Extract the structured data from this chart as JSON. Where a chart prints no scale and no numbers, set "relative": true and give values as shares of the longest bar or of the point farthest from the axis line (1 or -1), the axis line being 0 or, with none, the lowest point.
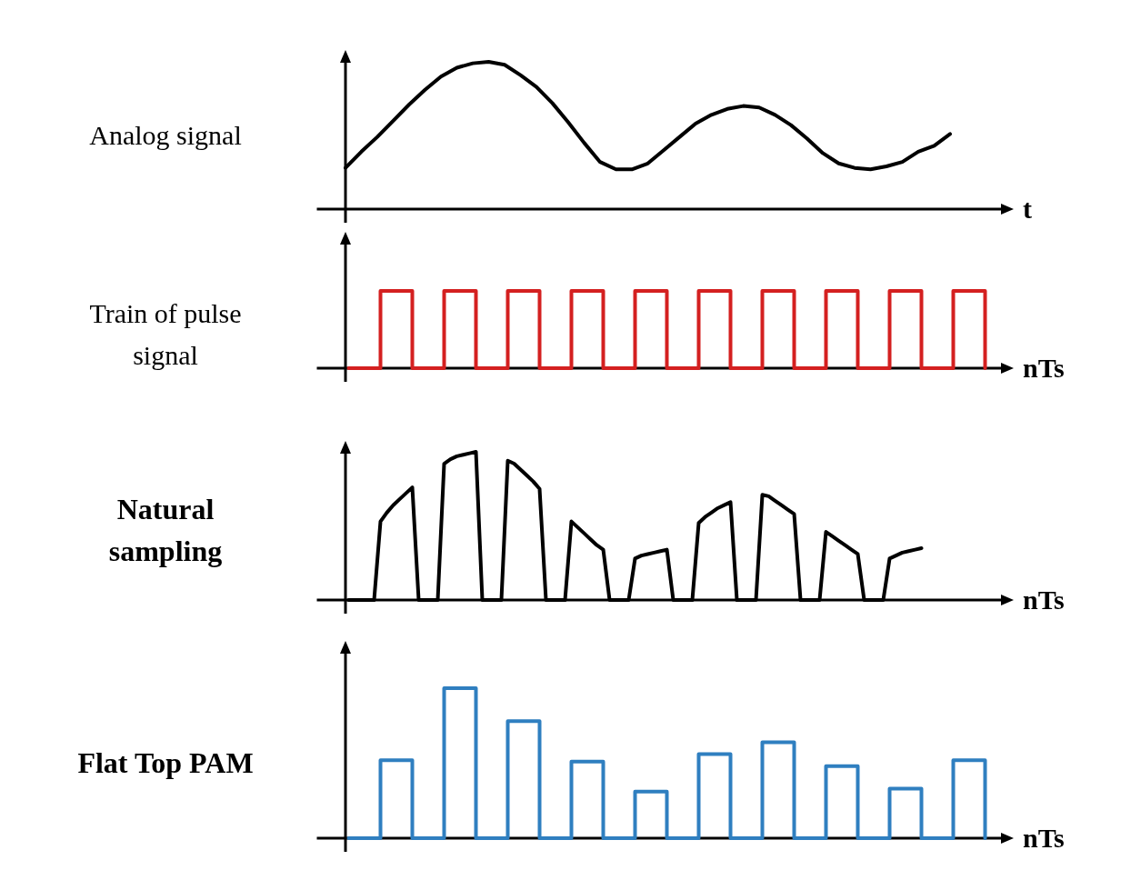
{
  "chart_data": [
    {
      "type": "line",
      "ylabel": "Analog signal",
      "xlabel": "t",
      "relative": true,
      "color": "#000000",
      "categories": [
        null,
        null,
        null,
        null,
        null,
        null,
        null,
        null,
        null,
        null,
        null,
        null,
        null,
        null,
        null,
        null,
        null,
        null,
        null,
        null,
        null,
        null,
        null,
        null,
        null,
        null,
        null,
        null,
        null,
        null,
        null,
        null,
        null,
        null,
        null,
        null,
        null,
        null,
        null
      ],
      "values": [
        0.28,
        0.39,
        0.49,
        0.6,
        0.71,
        0.81,
        0.9,
        0.96,
        0.99,
        1.0,
        0.98,
        0.91,
        0.83,
        0.72,
        0.59,
        0.45,
        0.32,
        0.27,
        0.27,
        0.31,
        0.4,
        0.49,
        0.58,
        0.64,
        0.68,
        0.7,
        0.69,
        0.64,
        0.57,
        0.48,
        0.38,
        0.31,
        0.28,
        0.27,
        0.29,
        0.32,
        0.39,
        0.43,
        0.51
      ]
    },
    {
      "type": "step",
      "ylabel": "Train of pulse signal",
      "xlabel": "nTs",
      "relative": true,
      "color": "#d42020",
      "categories": [
        null,
        null,
        null,
        null,
        null,
        null,
        null,
        null,
        null,
        null,
        null,
        null,
        null,
        null,
        null,
        null,
        null,
        null,
        null,
        null,
        null
      ],
      "values": [
        0,
        1,
        0,
        1,
        0,
        1,
        0,
        1,
        0,
        1,
        0,
        1,
        0,
        1,
        0,
        1,
        0,
        1,
        0,
        1,
        0
      ]
    },
    {
      "type": "line",
      "ylabel": "Natural sampling",
      "xlabel": "nTs",
      "relative": true,
      "color": "#000000",
      "categories": [
        null,
        null,
        null,
        null,
        null,
        null,
        null,
        null,
        null,
        null,
        null,
        null,
        null,
        null,
        null,
        null,
        null,
        null,
        null,
        null,
        null,
        null,
        null,
        null,
        null,
        null,
        null,
        null,
        null,
        null,
        null,
        null,
        null,
        null,
        null,
        null,
        null,
        null,
        null,
        null,
        null,
        null,
        null,
        null,
        null,
        null,
        null,
        null,
        null,
        null,
        null,
        null,
        null,
        null,
        null,
        null,
        null,
        null,
        null,
        null,
        null,
        null,
        null,
        null,
        null,
        null,
        null,
        null,
        null,
        null,
        null,
        null,
        null,
        null,
        null,
        null,
        null,
        null,
        null,
        null,
        null,
        null,
        null,
        null,
        null,
        null,
        null,
        null,
        null,
        null,
        null
      ],
      "values": [
        0,
        0,
        0,
        0,
        0,
        0.53,
        0.59,
        0.64,
        0.68,
        0.72,
        0.76,
        0,
        0,
        0,
        0,
        0.92,
        0.95,
        0.97,
        0.98,
        0.99,
        1.0,
        0,
        0,
        0,
        0,
        0.94,
        0.92,
        0.88,
        0.84,
        0.8,
        0.75,
        0,
        0,
        0,
        0,
        0.53,
        0.49,
        0.45,
        0.41,
        0.37,
        0.34,
        0,
        0,
        0,
        0,
        0.28,
        0.3,
        0.31,
        0.32,
        0.33,
        0.34,
        0,
        0,
        0,
        0,
        0.52,
        0.56,
        0.59,
        0.62,
        0.64,
        0.66,
        0,
        0,
        0,
        0,
        0.71,
        0.7,
        0.67,
        0.64,
        0.61,
        0.58,
        0,
        0,
        0,
        0,
        0.46,
        0.43,
        0.4,
        0.37,
        0.34,
        0.31,
        0,
        0,
        0,
        0,
        0.28,
        0.3,
        0.32,
        0.33,
        0.34,
        0.35
      ]
    },
    {
      "type": "step",
      "ylabel": "Flat Top PAM",
      "xlabel": "nTs",
      "relative": true,
      "color": "#2f7fc0",
      "categories": [
        null,
        null,
        null,
        null,
        null,
        null,
        null,
        null,
        null,
        null,
        null,
        null,
        null,
        null,
        null,
        null,
        null,
        null,
        null,
        null,
        null
      ],
      "values": [
        0,
        0.52,
        0,
        1.0,
        0,
        0.78,
        0,
        0.51,
        0,
        0.31,
        0,
        0.56,
        0,
        0.64,
        0,
        0.48,
        0,
        0.33,
        0,
        0.52,
        0
      ]
    }
  ]
}
